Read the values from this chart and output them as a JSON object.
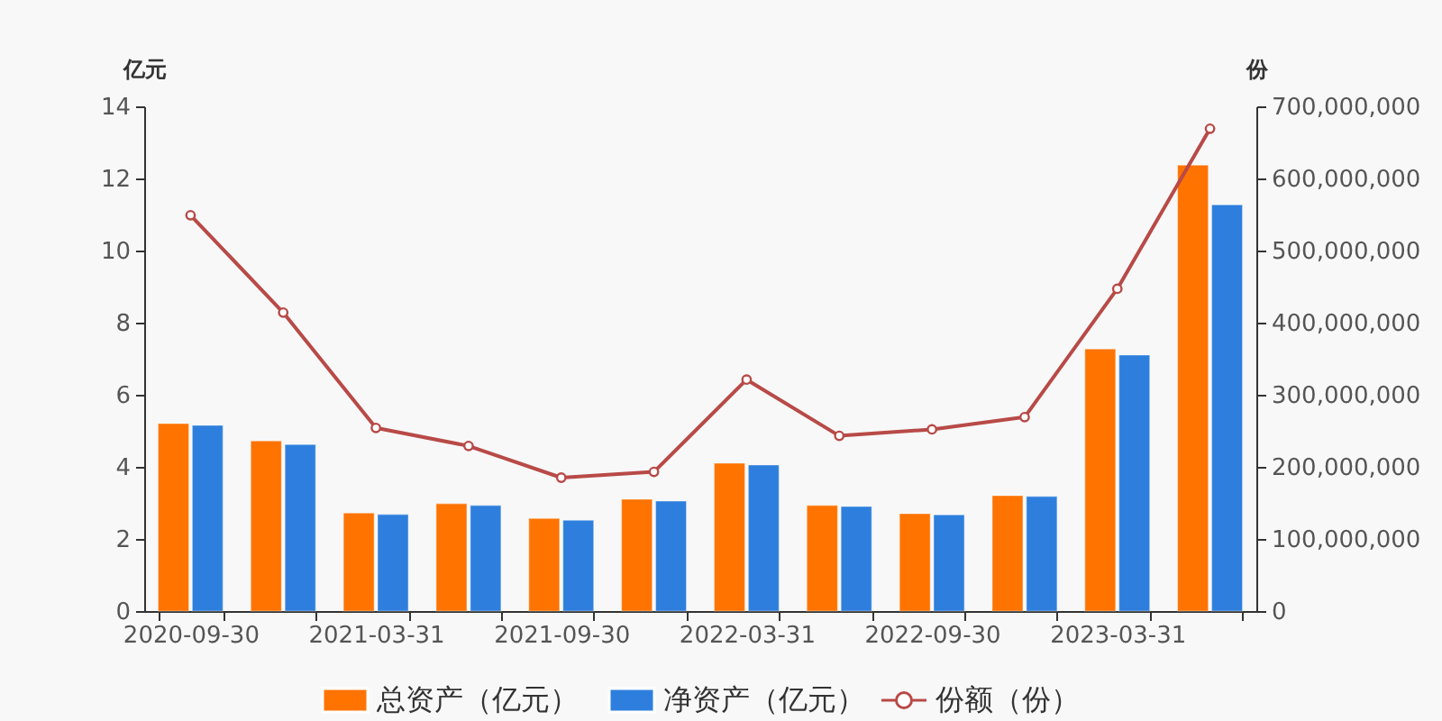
{
  "chart_data": {
    "type": "bar",
    "ylabel": "亿元",
    "y2label": "份",
    "categories": [
      "2020-09-30",
      null,
      "2021-03-31",
      null,
      "2021-09-30",
      null,
      "2022-03-31",
      null,
      "2022-09-30",
      null,
      "2023-03-31",
      null
    ],
    "series": [
      {
        "name": "总资产（亿元）",
        "color": "#ff7300",
        "values": [
          5.2,
          4.72,
          2.72,
          2.98,
          2.57,
          3.1,
          4.1,
          2.93,
          2.7,
          3.2,
          7.27,
          12.37
        ]
      },
      {
        "name": "净资产（亿元）",
        "color": "#2e7fdd",
        "values": [
          5.15,
          4.62,
          2.68,
          2.93,
          2.52,
          3.05,
          4.05,
          2.9,
          2.67,
          3.18,
          7.1,
          11.27
        ]
      },
      {
        "name": "份额（份）",
        "type": "line",
        "axis": "y2",
        "color": "#b84a47",
        "marker": "circle",
        "values": [
          549000000,
          414000000,
          254000000,
          229000000,
          185000000,
          193000000,
          321000000,
          243000000,
          252000000,
          269000000,
          447000000,
          669000000
        ]
      }
    ],
    "ylim": [
      0,
      14
    ],
    "yticks": [
      0,
      2,
      4,
      6,
      8,
      10,
      12,
      14
    ],
    "y2lim": [
      0,
      700000000
    ],
    "y2ticks": [
      0,
      {
        "value": 100000000,
        "label": "100,000,000"
      },
      {
        "value": 200000000,
        "label": "200,000,000"
      },
      {
        "value": 300000000,
        "label": "300,000,000"
      },
      {
        "value": 400000000,
        "label": "400,000,000"
      },
      {
        "value": 500000000,
        "label": "500,000,000"
      },
      {
        "value": 600000000,
        "label": "600,000,000"
      },
      {
        "value": 700000000,
        "label": "700,000,000"
      }
    ],
    "legend": "bottom",
    "grid": false
  }
}
